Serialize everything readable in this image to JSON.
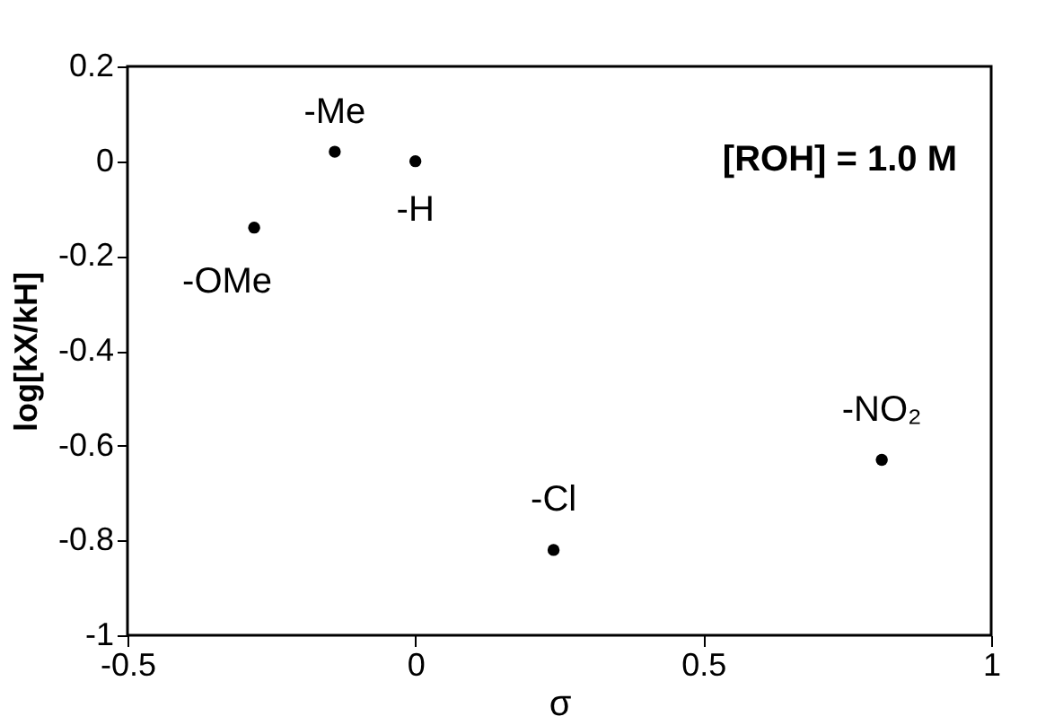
{
  "chart_data": {
    "type": "scatter",
    "xlabel": "σ",
    "ylabel": "log[kX/kH]",
    "x": [
      -0.28,
      -0.14,
      0,
      0.24,
      0.81
    ],
    "series": [
      {
        "color": "#000000",
        "values": [
          -0.14,
          0.02,
          0,
          -0.82,
          -0.63
        ]
      }
    ],
    "marker": "circle",
    "grid": false,
    "xlim": [
      -0.5,
      1
    ],
    "xticks": [
      -0.5,
      0,
      0.5,
      1
    ],
    "ylim": [
      -1,
      0.2
    ],
    "yticks": [
      -1,
      -0.8,
      -0.6,
      -0.4,
      -0.2,
      0,
      0.2
    ],
    "annotations": [
      {
        "text": "-OMe",
        "x": -0.28,
        "y": -0.14
      },
      {
        "text": "-Me",
        "x": -0.14,
        "y": 0.02
      },
      {
        "text": "-H",
        "x": 0,
        "y": 0
      },
      {
        "text": "-Cl",
        "x": 0.24,
        "y": -0.82
      },
      {
        "text": "-NO₂",
        "x": 0.81,
        "y": -0.63
      },
      "[ROH] = 1.0 M"
    ]
  }
}
